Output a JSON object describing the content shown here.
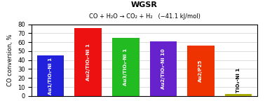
{
  "chart_data": {
    "type": "bar",
    "title": "WGSR",
    "subtitle": "CO + H₂O → CO₂ + H₂   (−41.1 kJ/mol)",
    "categories": [
      "Au1/TiO₂-Ni 1",
      "Au2/TiO₂-Ni 1",
      "Au3/TiO₂-Ni 1",
      "Au2/TiO₂-Ni 10",
      "Au2/P25",
      "TiO₂-Ni 1"
    ],
    "values": [
      45,
      76,
      65,
      61,
      56,
      2
    ],
    "colors": [
      "#2222dd",
      "#ee1111",
      "#22bb22",
      "#6622cc",
      "#ee3300",
      "#aaaa00"
    ],
    "ylabel": "CO conversion, %",
    "ylim": [
      0,
      80
    ],
    "yticks": [
      0,
      10,
      20,
      30,
      40,
      50,
      60,
      70,
      80
    ],
    "grid": true,
    "tick_labels": "y"
  }
}
